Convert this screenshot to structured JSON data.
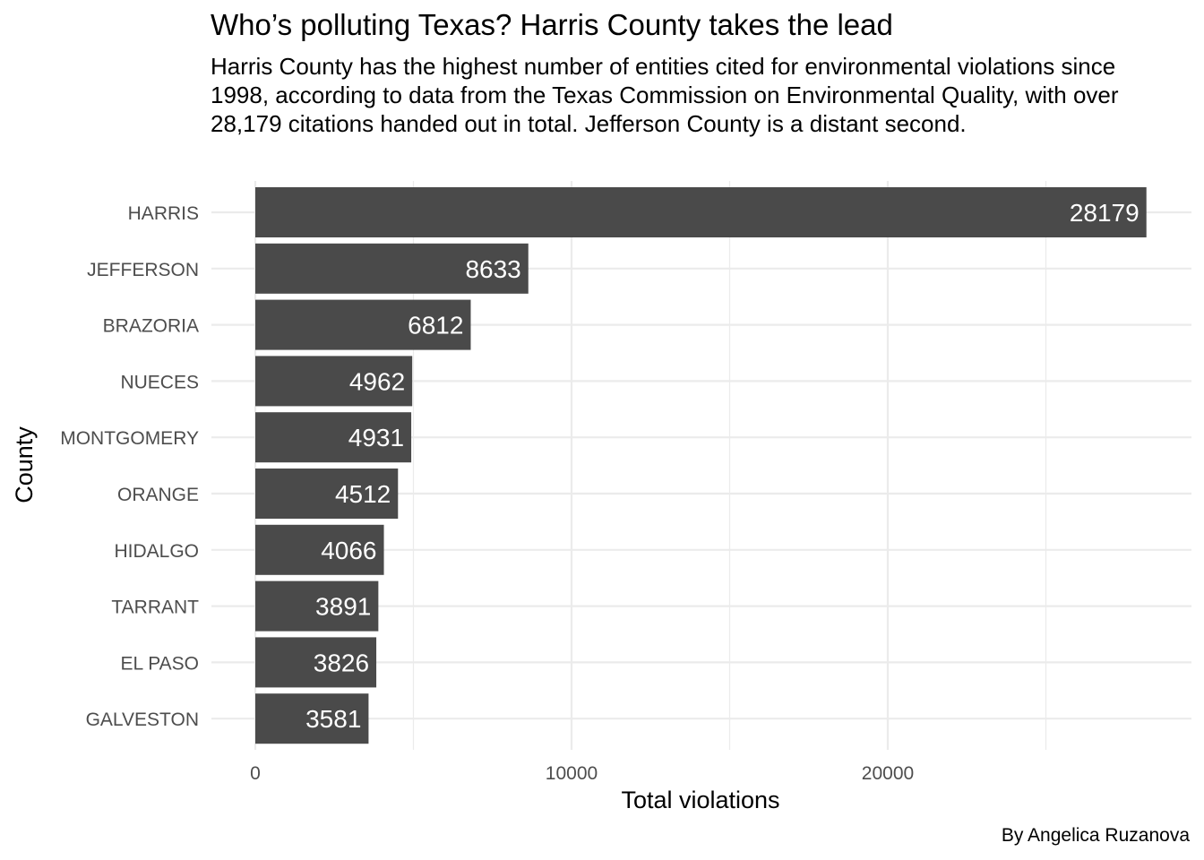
{
  "chart_data": {
    "type": "bar",
    "orientation": "horizontal",
    "title": "Who’s polluting Texas? Harris County takes the lead",
    "subtitle": "Harris County has the highest number of entities cited for environmental violations since 1998, according to data from the Texas Commission on Environmental Quality, with over 28,179 citations handed out in total. Jefferson County is a distant second.",
    "xlabel": "Total violations",
    "ylabel": "County",
    "caption": "By Angelica Ruzanova",
    "categories": [
      "HARRIS",
      "JEFFERSON",
      "BRAZORIA",
      "NUECES",
      "MONTGOMERY",
      "ORANGE",
      "HIDALGO",
      "TARRANT",
      "EL PASO",
      "GALVESTON"
    ],
    "values": [
      28179,
      8633,
      6812,
      4962,
      4931,
      4512,
      4066,
      3891,
      3826,
      3581
    ],
    "data_labels": [
      "28179",
      "8633",
      "6812",
      "4962",
      "4931",
      "4512",
      "4066",
      "3891",
      "3826",
      "3581"
    ],
    "xticks": [
      0,
      10000,
      20000
    ],
    "xtick_labels": [
      "0",
      "10000",
      "20000"
    ],
    "xlim": [
      0,
      29500
    ],
    "grid": true,
    "legend": "none",
    "colors": {
      "bar": "#4a4a4a",
      "grid": "#ebebeb",
      "bar_label": "#ffffff",
      "tick_label": "#4d4d4d"
    }
  }
}
